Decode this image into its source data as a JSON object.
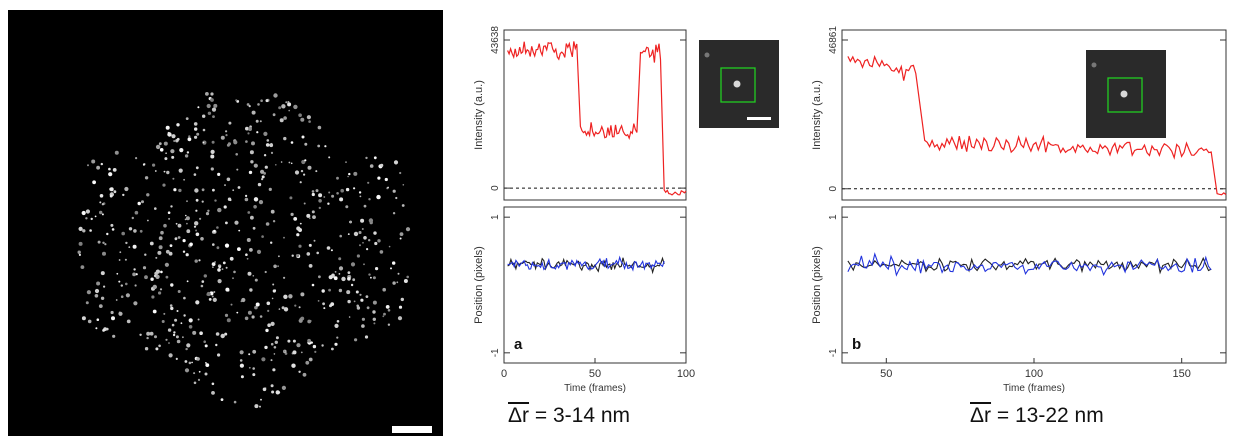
{
  "micrograph": {
    "description_visible": "",
    "spots_seed": 7
  },
  "panels": [
    {
      "label": "a",
      "inset_scalebar": true,
      "caption": {
        "symbol": "Δr",
        "text": " = 3-14 nm"
      },
      "chart_data": [
        {
          "type": "line",
          "ylabel": "Intensity (a.u.)",
          "yticks": [
            "0",
            "43638"
          ],
          "ylim": [
            -3500,
            46500
          ],
          "xlim": [
            0,
            100
          ],
          "baseline": 0,
          "series": [
            {
              "color": "#ee2222",
              "segments": [
                {
                  "x": [
                    2,
                    40
                  ],
                  "y": [
                    40500,
                    40500
                  ]
                },
                {
                  "x": [
                    42,
                    73
                  ],
                  "y": [
                    16500,
                    16500
                  ]
                },
                {
                  "x": [
                    75,
                    86
                  ],
                  "y": [
                    40000,
                    40000
                  ]
                },
                {
                  "x": [
                    88,
                    100
                  ],
                  "y": [
                    -1500,
                    -1500
                  ]
                }
              ]
            }
          ]
        },
        {
          "type": "line",
          "ylabel": "Position (pixels)",
          "yticks": [
            "1",
            "-1"
          ],
          "ytick_values": [
            1,
            -1
          ],
          "ylim": [
            -1.15,
            1.15
          ],
          "xlim": [
            0,
            100
          ],
          "xlabel": "Time (frames)",
          "xticks": [
            0,
            50,
            100
          ],
          "series": [
            {
              "color": "#222222",
              "x_range": [
                2,
                88
              ],
              "mean": 0.3,
              "noise": 0.07
            },
            {
              "color": "#2233dd",
              "x_range": [
                2,
                88
              ],
              "mean": 0.3,
              "noise": 0.08
            }
          ]
        }
      ]
    },
    {
      "label": "b",
      "inset_scalebar": false,
      "caption": {
        "symbol": "Δr",
        "text": " = 13-22 nm"
      },
      "chart_data": [
        {
          "type": "line",
          "ylabel": "Intensity (a.u.)",
          "yticks": [
            "0",
            "46861"
          ],
          "ylim": [
            -3500,
            49500
          ],
          "xlim": [
            35,
            165
          ],
          "baseline": 0,
          "series": [
            {
              "color": "#ee2222",
              "segments": [
                {
                  "x": [
                    37,
                    60
                  ],
                  "y": [
                    40500,
                    36500
                  ]
                },
                {
                  "x": [
                    63,
                    160
                  ],
                  "y": [
                    14500,
                    11500
                  ]
                },
                {
                  "x": [
                    162,
                    165
                  ],
                  "y": [
                    -1500,
                    -1500
                  ]
                }
              ]
            }
          ]
        },
        {
          "type": "line",
          "ylabel": "Position (pixels)",
          "yticks": [
            "1",
            "-1"
          ],
          "ytick_values": [
            1,
            -1
          ],
          "ylim": [
            -1.15,
            1.15
          ],
          "xlim": [
            35,
            165
          ],
          "xlabel": "Time (frames)",
          "xticks": [
            50,
            100,
            150
          ],
          "series": [
            {
              "color": "#222222",
              "x_range": [
                37,
                160
              ],
              "mean": 0.3,
              "noise": 0.08
            },
            {
              "color": "#2233dd",
              "x_range": [
                37,
                160
              ],
              "mean": 0.28,
              "noise": 0.1
            }
          ]
        }
      ]
    }
  ]
}
